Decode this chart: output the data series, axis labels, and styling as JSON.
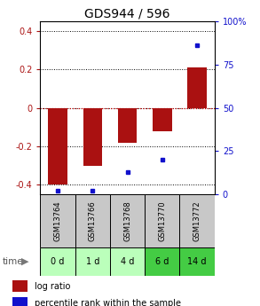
{
  "title": "GDS944 / 596",
  "samples": [
    "GSM13764",
    "GSM13766",
    "GSM13768",
    "GSM13770",
    "GSM13772"
  ],
  "time_labels": [
    "0 d",
    "1 d",
    "4 d",
    "6 d",
    "14 d"
  ],
  "log_ratios": [
    -0.4,
    -0.3,
    -0.18,
    -0.12,
    0.21
  ],
  "percentile_ranks": [
    2,
    2,
    13,
    20,
    86
  ],
  "ylim_left": [
    -0.45,
    0.45
  ],
  "ylim_right": [
    0,
    100
  ],
  "bar_color": "#aa1111",
  "dot_color": "#1111cc",
  "zero_line_color": "#cc0000",
  "gsm_bg": "#c8c8c8",
  "time_bg_colors": [
    "#bbffbb",
    "#bbffbb",
    "#bbffbb",
    "#44cc44",
    "#44cc44"
  ],
  "title_fontsize": 10,
  "tick_fontsize": 7,
  "label_fontsize": 7
}
